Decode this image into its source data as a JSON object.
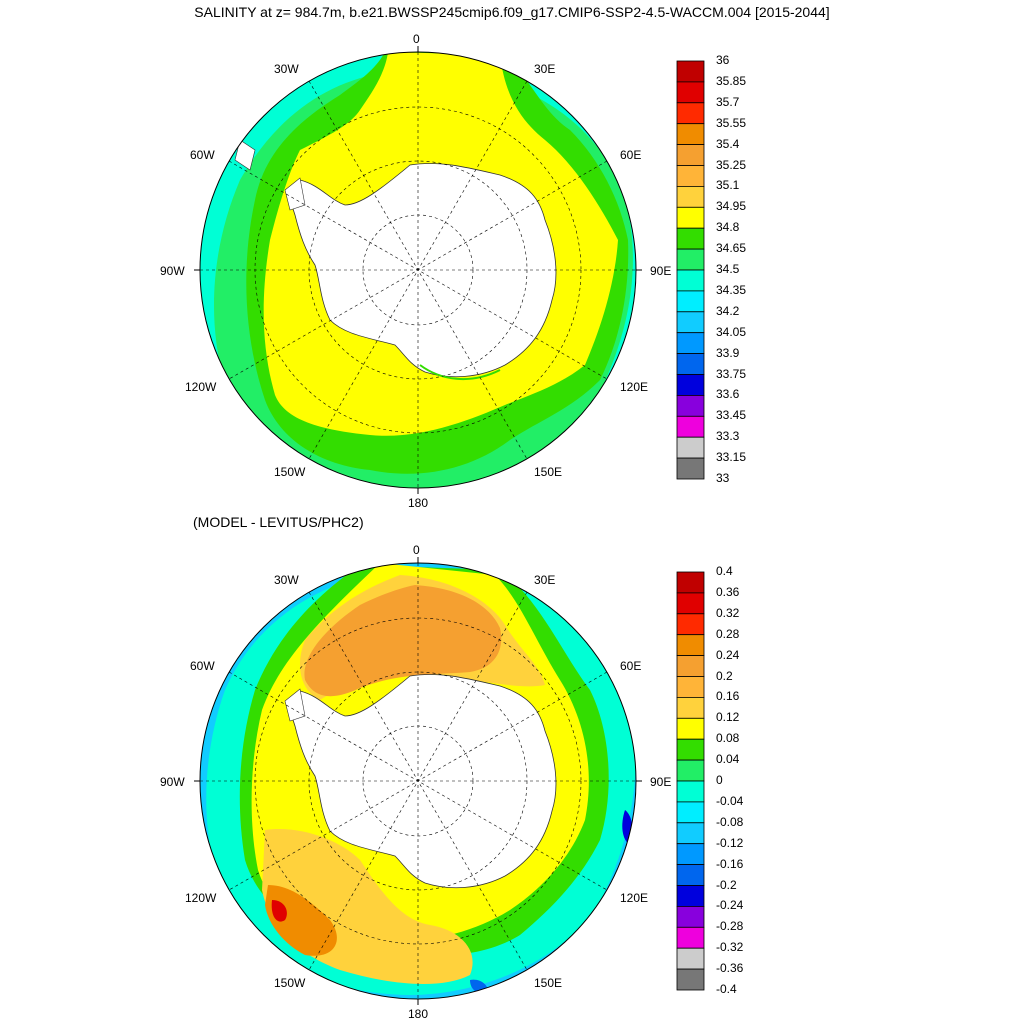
{
  "title": "SALINITY at z= 984.7m, b.e21.BWSSP245cmip6.f09_g17.CMIP6-SSP2-4.5-WACCM.004 [2015-2044]",
  "subtitle": "(MODEL - LEVITUS/PHC2)",
  "longitude_labels": [
    "0",
    "30E",
    "60E",
    "90E",
    "120E",
    "150E",
    "180",
    "150W",
    "120W",
    "90W",
    "60W",
    "30W"
  ],
  "top_map": {
    "colorbar_labels": [
      "36",
      "35.85",
      "35.7",
      "35.55",
      "35.4",
      "35.25",
      "35.1",
      "34.95",
      "34.8",
      "34.65",
      "34.5",
      "34.35",
      "34.2",
      "34.05",
      "33.9",
      "33.75",
      "33.6",
      "33.45",
      "33.3",
      "33.15",
      "33"
    ],
    "colorbar_colors": [
      "#c00000",
      "#e00000",
      "#ff2a00",
      "#f08c00",
      "#f5a030",
      "#ffb438",
      "#ffd23c",
      "#ffff00",
      "#33dd00",
      "#22ee66",
      "#00ffd5",
      "#00eeff",
      "#11ccff",
      "#0099ff",
      "#0066ee",
      "#0000dd",
      "#8800dd",
      "#ee00dd",
      "#cccccc",
      "#777777"
    ]
  },
  "bottom_map": {
    "colorbar_labels": [
      "0.4",
      "0.36",
      "0.32",
      "0.28",
      "0.24",
      "0.2",
      "0.16",
      "0.12",
      "0.08",
      "0.04",
      "0",
      "-0.04",
      "-0.08",
      "-0.12",
      "-0.16",
      "-0.2",
      "-0.24",
      "-0.28",
      "-0.32",
      "-0.36",
      "-0.4"
    ],
    "colorbar_colors": [
      "#c00000",
      "#e00000",
      "#ff2a00",
      "#f08c00",
      "#f5a030",
      "#ffb438",
      "#ffd23c",
      "#ffff00",
      "#33dd00",
      "#22ee66",
      "#00ffd5",
      "#00eeff",
      "#11ccff",
      "#0099ff",
      "#0066ee",
      "#0000dd",
      "#8800dd",
      "#ee00dd",
      "#cccccc",
      "#777777"
    ]
  }
}
